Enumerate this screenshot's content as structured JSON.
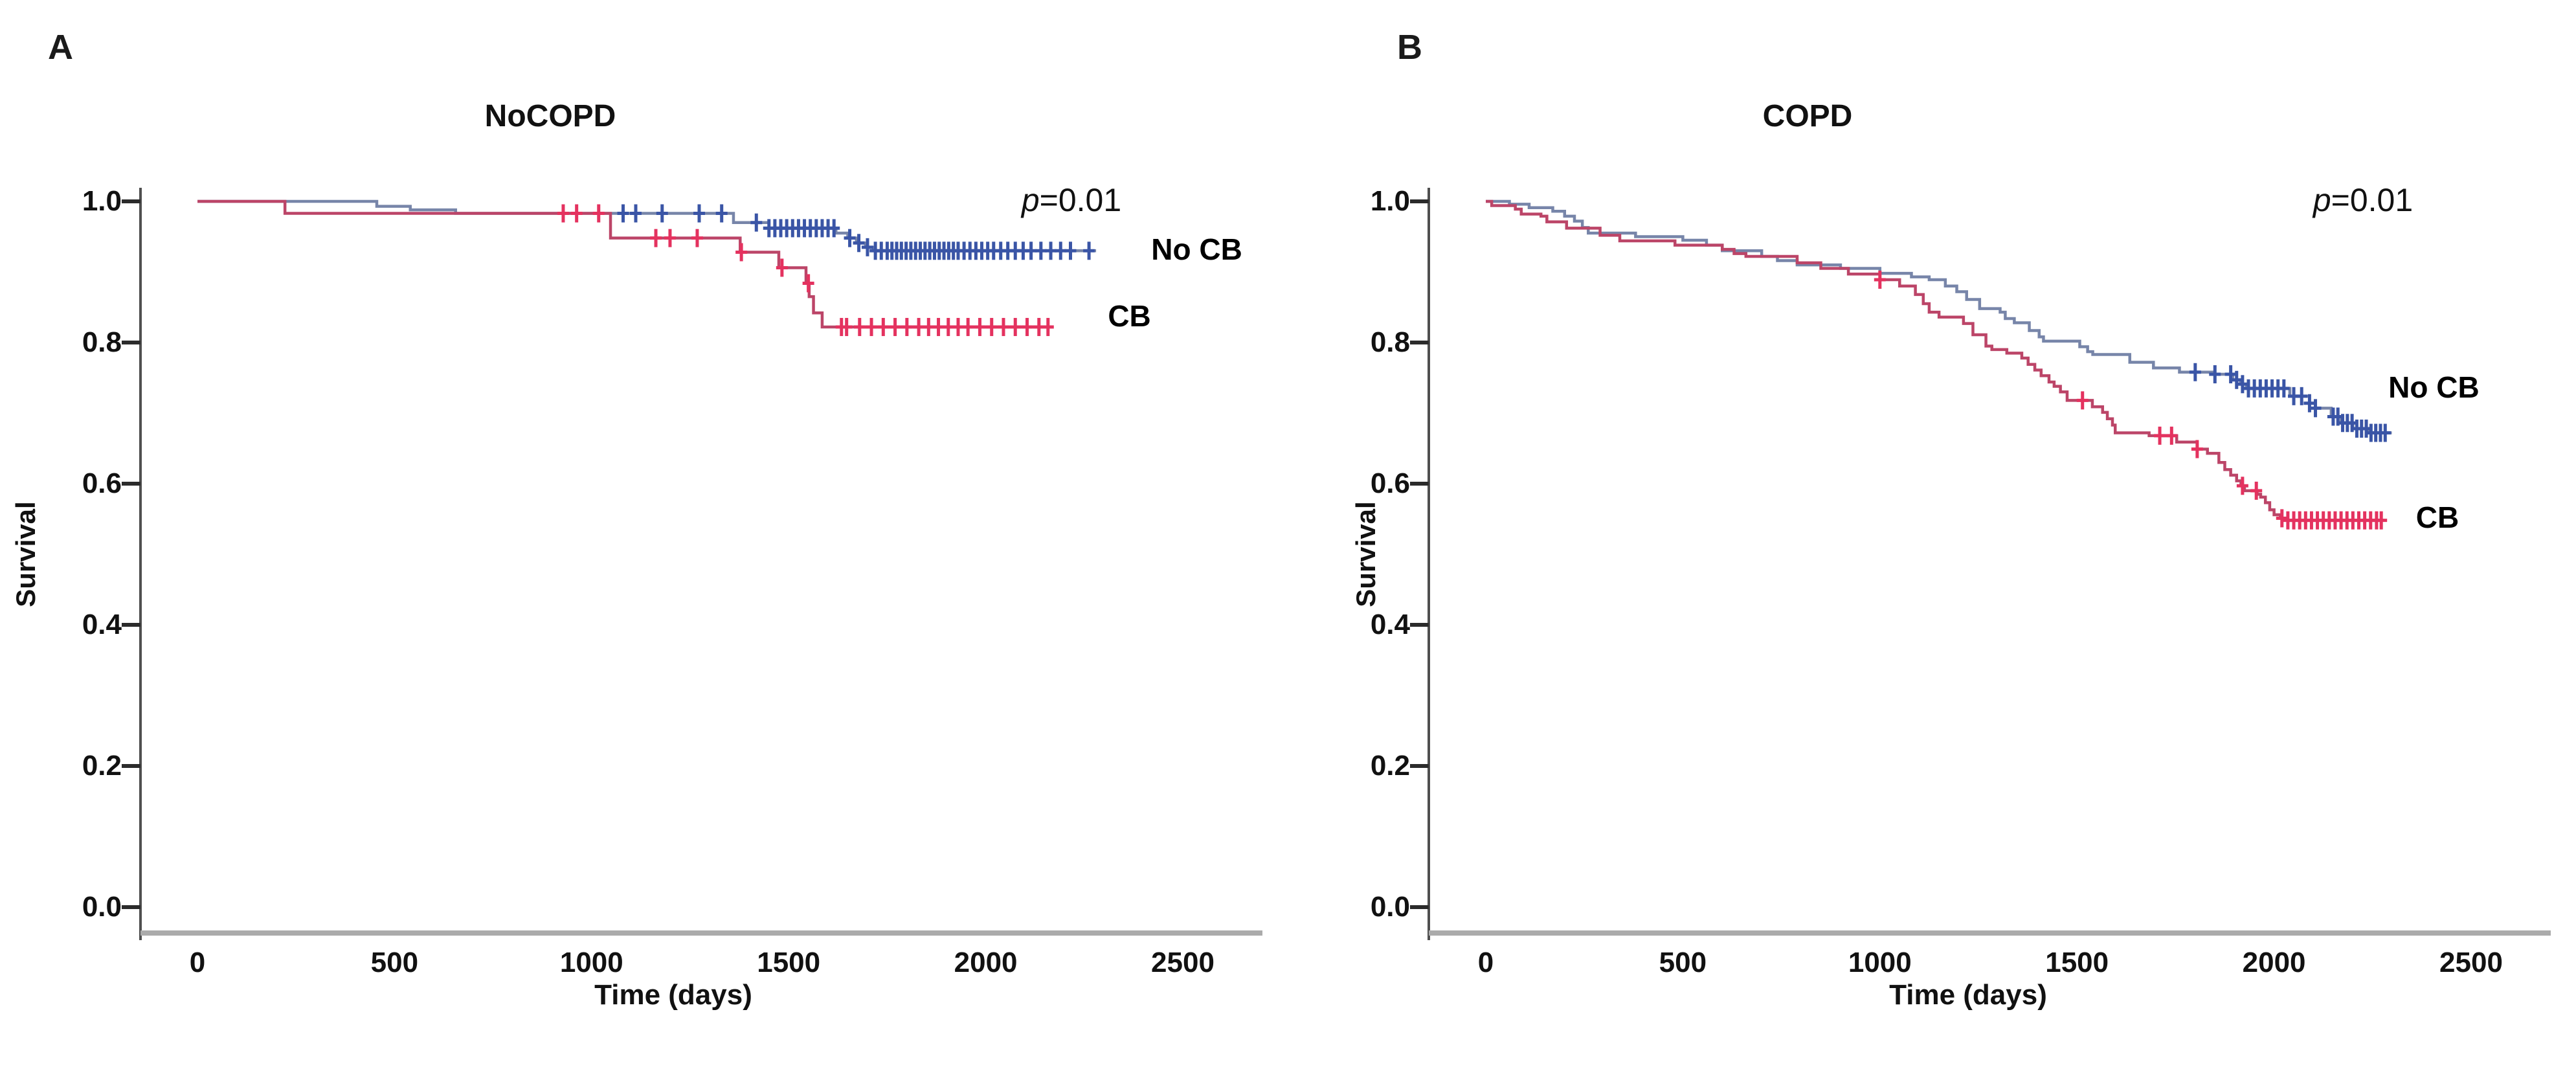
{
  "chart_data": [
    {
      "type": "line",
      "subtype": "kaplan-meier-step",
      "panel_label": "A",
      "title": "NoCOPD",
      "p_value": "p=0.01",
      "p_italic": "p",
      "p_rest": "=0.01",
      "xlabel": "Time (days)",
      "ylabel": "Survival",
      "x_ticks": [
        "0",
        "500",
        "1000",
        "1500",
        "2000",
        "2500"
      ],
      "y_ticks": [
        "1.0",
        "0.8",
        "0.6",
        "0.4",
        "0.2",
        "0.0"
      ],
      "xlim": [
        0,
        2700
      ],
      "ylim": [
        0.0,
        1.0
      ],
      "grid": false,
      "legend_position": "curve-end-labels",
      "series": [
        {
          "name": "No CB",
          "line_color": "#7785a9",
          "censor_color": "#3a55a6",
          "label_anchor": {
            "t": 2420,
            "s": 0.932
          },
          "steps": [
            [
              0,
              1.0
            ],
            [
              455,
              0.993
            ],
            [
              540,
              0.988
            ],
            [
              655,
              0.983
            ],
            [
              1360,
              0.97
            ],
            [
              1450,
              0.962
            ],
            [
              1620,
              0.955
            ],
            [
              1650,
              0.948
            ],
            [
              1672,
              0.941
            ],
            [
              1695,
              0.935
            ],
            [
              1715,
              0.93
            ],
            [
              2280,
              0.93
            ]
          ],
          "censors": [
            1080,
            1112,
            1179,
            1273,
            1330,
            1418,
            1450,
            1465,
            1480,
            1495,
            1510,
            1525,
            1540,
            1555,
            1570,
            1585,
            1600,
            1615,
            1655,
            1678,
            1700,
            1720,
            1735,
            1750,
            1762,
            1774,
            1786,
            1798,
            1810,
            1822,
            1834,
            1846,
            1858,
            1870,
            1882,
            1894,
            1906,
            1918,
            1930,
            1945,
            1960,
            1975,
            1990,
            2005,
            2020,
            2038,
            2056,
            2075,
            2095,
            2115,
            2140,
            2165,
            2190,
            2215,
            2262
          ]
        },
        {
          "name": "CB",
          "line_color": "#bc4568",
          "censor_color": "#e4325f",
          "label_anchor": {
            "t": 2310,
            "s": 0.838
          },
          "steps": [
            [
              0,
              1.0
            ],
            [
              222,
              0.983
            ],
            [
              1048,
              0.948
            ],
            [
              1377,
              0.928
            ],
            [
              1475,
              0.906
            ],
            [
              1544,
              0.884
            ],
            [
              1552,
              0.865
            ],
            [
              1563,
              0.842
            ],
            [
              1585,
              0.822
            ],
            [
              2160,
              0.822
            ]
          ],
          "censors": [
            928,
            962,
            1018,
            1163,
            1199,
            1268,
            1380,
            1483,
            1550,
            1634,
            1647,
            1680,
            1710,
            1740,
            1770,
            1800,
            1830,
            1855,
            1880,
            1905,
            1930,
            1955,
            1985,
            2015,
            2045,
            2075,
            2105,
            2135,
            2158
          ]
        }
      ]
    },
    {
      "type": "line",
      "subtype": "kaplan-meier-step",
      "panel_label": "B",
      "title": "COPD",
      "p_value": "p=0.01",
      "p_italic": "p",
      "p_rest": "=0.01",
      "xlabel": "Time (days)",
      "ylabel": "Survival",
      "x_ticks": [
        "0",
        "500",
        "1000",
        "1500",
        "2000",
        "2500"
      ],
      "y_ticks": [
        "1.0",
        "0.8",
        "0.6",
        "0.4",
        "0.2",
        "0.0"
      ],
      "xlim": [
        0,
        2700
      ],
      "ylim": [
        0.0,
        1.0
      ],
      "grid": false,
      "legend_position": "curve-end-labels",
      "series": [
        {
          "name": "No CB",
          "line_color": "#7785a9",
          "censor_color": "#3a55a6",
          "label_anchor": {
            "t": 2290,
            "s": 0.737
          },
          "steps": [
            [
              0,
              1.0
            ],
            [
              60,
              0.996
            ],
            [
              110,
              0.991
            ],
            [
              170,
              0.986
            ],
            [
              200,
              0.979
            ],
            [
              225,
              0.972
            ],
            [
              245,
              0.963
            ],
            [
              260,
              0.955
            ],
            [
              380,
              0.95
            ],
            [
              500,
              0.945
            ],
            [
              560,
              0.938
            ],
            [
              600,
              0.93
            ],
            [
              700,
              0.922
            ],
            [
              740,
              0.916
            ],
            [
              790,
              0.91
            ],
            [
              900,
              0.905
            ],
            [
              1000,
              0.898
            ],
            [
              1080,
              0.893
            ],
            [
              1125,
              0.889
            ],
            [
              1166,
              0.88
            ],
            [
              1195,
              0.872
            ],
            [
              1220,
              0.861
            ],
            [
              1253,
              0.848
            ],
            [
              1305,
              0.843
            ],
            [
              1318,
              0.834
            ],
            [
              1341,
              0.828
            ],
            [
              1379,
              0.817
            ],
            [
              1404,
              0.808
            ],
            [
              1415,
              0.802
            ],
            [
              1507,
              0.794
            ],
            [
              1527,
              0.787
            ],
            [
              1540,
              0.783
            ],
            [
              1634,
              0.772
            ],
            [
              1694,
              0.764
            ],
            [
              1760,
              0.758
            ],
            [
              1850,
              0.755
            ],
            [
              1895,
              0.747
            ],
            [
              1915,
              0.741
            ],
            [
              1930,
              0.735
            ],
            [
              2040,
              0.724
            ],
            [
              2090,
              0.714
            ],
            [
              2105,
              0.707
            ],
            [
              2145,
              0.695
            ],
            [
              2170,
              0.686
            ],
            [
              2200,
              0.678
            ],
            [
              2240,
              0.672
            ],
            [
              2295,
              0.67
            ]
          ],
          "censors": [
            1800,
            1850,
            1890,
            1905,
            1920,
            1935,
            1950,
            1965,
            1980,
            1995,
            2010,
            2025,
            2050,
            2070,
            2090,
            2105,
            2150,
            2162,
            2174,
            2186,
            2198,
            2210,
            2222,
            2234,
            2246,
            2258,
            2270,
            2282
          ]
        },
        {
          "name": "CB",
          "line_color": "#bc4568",
          "censor_color": "#e4325f",
          "label_anchor": {
            "t": 2360,
            "s": 0.552
          },
          "steps": [
            [
              0,
              1.0
            ],
            [
              15,
              0.994
            ],
            [
              75,
              0.989
            ],
            [
              90,
              0.982
            ],
            [
              140,
              0.979
            ],
            [
              155,
              0.971
            ],
            [
              205,
              0.962
            ],
            [
              290,
              0.952
            ],
            [
              340,
              0.944
            ],
            [
              480,
              0.938
            ],
            [
              600,
              0.932
            ],
            [
              630,
              0.926
            ],
            [
              660,
              0.922
            ],
            [
              790,
              0.913
            ],
            [
              850,
              0.905
            ],
            [
              920,
              0.897
            ],
            [
              1000,
              0.889
            ],
            [
              1050,
              0.88
            ],
            [
              1090,
              0.868
            ],
            [
              1110,
              0.855
            ],
            [
              1125,
              0.843
            ],
            [
              1150,
              0.836
            ],
            [
              1212,
              0.827
            ],
            [
              1236,
              0.811
            ],
            [
              1269,
              0.795
            ],
            [
              1284,
              0.79
            ],
            [
              1322,
              0.785
            ],
            [
              1360,
              0.778
            ],
            [
              1376,
              0.769
            ],
            [
              1393,
              0.761
            ],
            [
              1409,
              0.753
            ],
            [
              1429,
              0.744
            ],
            [
              1442,
              0.738
            ],
            [
              1458,
              0.73
            ],
            [
              1475,
              0.718
            ],
            [
              1539,
              0.709
            ],
            [
              1565,
              0.701
            ],
            [
              1577,
              0.692
            ],
            [
              1590,
              0.683
            ],
            [
              1597,
              0.672
            ],
            [
              1683,
              0.668
            ],
            [
              1753,
              0.659
            ],
            [
              1805,
              0.649
            ],
            [
              1831,
              0.643
            ],
            [
              1860,
              0.63
            ],
            [
              1875,
              0.62
            ],
            [
              1890,
              0.612
            ],
            [
              1905,
              0.604
            ],
            [
              1916,
              0.597
            ],
            [
              1925,
              0.59
            ],
            [
              1957,
              0.585
            ],
            [
              1966,
              0.581
            ],
            [
              1978,
              0.573
            ],
            [
              1989,
              0.563
            ],
            [
              2000,
              0.556
            ],
            [
              2016,
              0.551
            ],
            [
              2030,
              0.548
            ],
            [
              2280,
              0.548
            ]
          ],
          "censors": [
            1000,
            1514,
            1710,
            1740,
            1805,
            1920,
            1955,
            2020,
            2035,
            2050,
            2065,
            2080,
            2095,
            2110,
            2125,
            2140,
            2155,
            2170,
            2185,
            2200,
            2215,
            2230,
            2245,
            2260,
            2272
          ]
        }
      ]
    }
  ],
  "style": {
    "y_axis_color": "#4f4f4f",
    "tick_color": "#2b2b2b",
    "x_axis_bar_color": "#ababab",
    "text_color": "#111111",
    "background": "#ffffff"
  }
}
